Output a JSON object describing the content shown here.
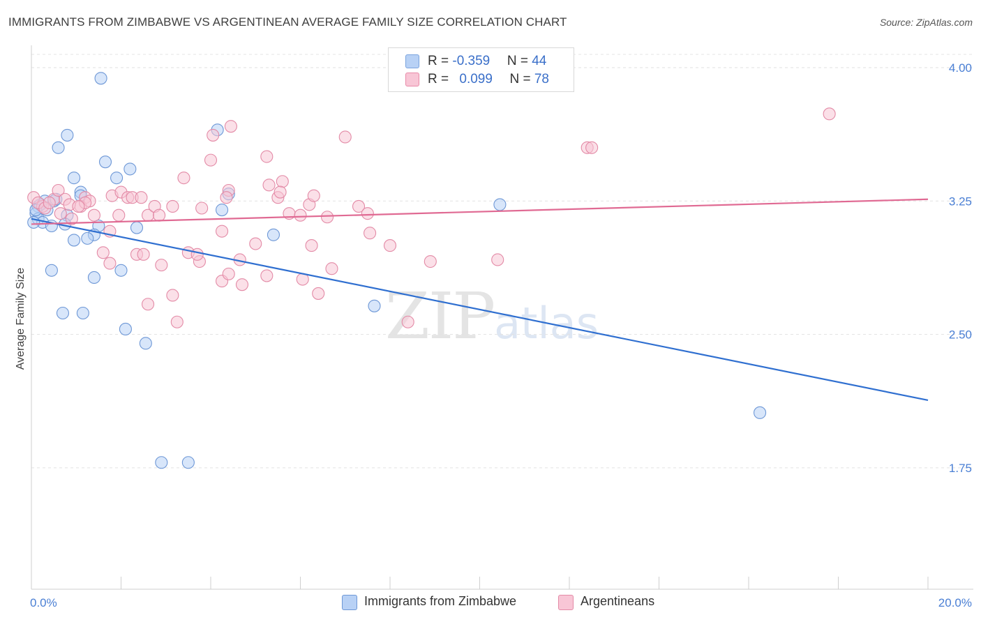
{
  "title": "IMMIGRANTS FROM ZIMBABWE VS ARGENTINEAN AVERAGE FAMILY SIZE CORRELATION CHART",
  "source": "Source: ZipAtlas.com",
  "watermark": {
    "zip": "ZIP",
    "atlas": "atlas"
  },
  "legend_top": {
    "rows": [
      {
        "r_label": "R = ",
        "r_value": "-0.359",
        "n_label": "N = ",
        "n_value": "44",
        "color": "#b8d1f5",
        "border": "#7aa3de"
      },
      {
        "r_label": "R = ",
        "r_value": "0.099",
        "n_label": "N = ",
        "n_value": "78",
        "color": "#f8c6d6",
        "border": "#e98aa8"
      }
    ]
  },
  "legend_bottom": [
    {
      "label": "Immigrants from Zimbabwe",
      "color": "#b8d1f5",
      "border": "#6d97d6"
    },
    {
      "label": "Argentineans",
      "color": "#f8c6d6",
      "border": "#e38aa6"
    }
  ],
  "chart_data": {
    "type": "scatter",
    "title": "IMMIGRANTS FROM ZIMBABWE VS ARGENTINEAN AVERAGE FAMILY SIZE CORRELATION CHART",
    "xlabel": "",
    "ylabel": "Average Family Size",
    "xlim": [
      0,
      20
    ],
    "ylim": [
      1.0,
      4.2
    ],
    "x_tick_labels": [
      "0.0%",
      "20.0%"
    ],
    "y_ticks": [
      1.75,
      2.5,
      3.25,
      4.0
    ],
    "y_tick_labels": [
      "1.75",
      "2.50",
      "3.25",
      "4.00"
    ],
    "grid": true,
    "series": [
      {
        "name": "Immigrants from Zimbabwe",
        "color": "#6d97d6",
        "fill": "#b8d1f5",
        "trend": {
          "x": [
            0,
            20
          ],
          "y": [
            3.15,
            2.13
          ],
          "color": "#2f6fd0"
        },
        "points": [
          [
            1.55,
            3.94
          ],
          [
            0.8,
            3.62
          ],
          [
            0.6,
            3.55
          ],
          [
            1.65,
            3.47
          ],
          [
            2.2,
            3.43
          ],
          [
            1.9,
            3.38
          ],
          [
            0.95,
            3.38
          ],
          [
            4.15,
            3.65
          ],
          [
            4.4,
            3.29
          ],
          [
            1.1,
            3.3
          ],
          [
            0.3,
            3.25
          ],
          [
            0.5,
            3.25
          ],
          [
            0.15,
            3.22
          ],
          [
            0.35,
            3.2
          ],
          [
            4.25,
            3.2
          ],
          [
            0.1,
            3.18
          ],
          [
            0.8,
            3.17
          ],
          [
            0.15,
            3.15
          ],
          [
            0.25,
            3.13
          ],
          [
            0.05,
            3.13
          ],
          [
            0.45,
            3.11
          ],
          [
            0.75,
            3.12
          ],
          [
            1.5,
            3.11
          ],
          [
            2.35,
            3.1
          ],
          [
            1.4,
            3.06
          ],
          [
            1.25,
            3.04
          ],
          [
            0.95,
            3.03
          ],
          [
            5.4,
            3.06
          ],
          [
            0.45,
            2.86
          ],
          [
            2.0,
            2.86
          ],
          [
            1.4,
            2.82
          ],
          [
            0.7,
            2.62
          ],
          [
            1.15,
            2.62
          ],
          [
            7.65,
            2.66
          ],
          [
            2.1,
            2.53
          ],
          [
            2.55,
            2.45
          ],
          [
            10.45,
            3.23
          ],
          [
            16.25,
            2.06
          ],
          [
            2.9,
            1.78
          ],
          [
            3.5,
            1.78
          ],
          [
            0.2,
            3.23
          ],
          [
            0.55,
            3.26
          ],
          [
            1.1,
            3.28
          ],
          [
            0.1,
            3.2
          ]
        ]
      },
      {
        "name": "Argentineans",
        "color": "#e38aa6",
        "fill": "#f8c6d6",
        "trend": {
          "x": [
            0,
            20
          ],
          "y": [
            3.12,
            3.26
          ],
          "color": "#e06a93"
        },
        "points": [
          [
            0.05,
            3.27
          ],
          [
            0.25,
            3.22
          ],
          [
            0.5,
            3.26
          ],
          [
            0.6,
            3.31
          ],
          [
            0.75,
            3.26
          ],
          [
            1.2,
            3.27
          ],
          [
            1.1,
            3.22
          ],
          [
            1.3,
            3.25
          ],
          [
            1.4,
            3.17
          ],
          [
            1.2,
            3.24
          ],
          [
            0.9,
            3.15
          ],
          [
            0.65,
            3.18
          ],
          [
            1.8,
            3.28
          ],
          [
            2.0,
            3.3
          ],
          [
            2.15,
            3.27
          ],
          [
            2.25,
            3.27
          ],
          [
            2.45,
            3.27
          ],
          [
            1.95,
            3.17
          ],
          [
            1.75,
            3.08
          ],
          [
            2.6,
            3.17
          ],
          [
            2.75,
            3.22
          ],
          [
            2.85,
            3.17
          ],
          [
            3.15,
            3.22
          ],
          [
            3.4,
            3.38
          ],
          [
            3.8,
            3.21
          ],
          [
            4.0,
            3.48
          ],
          [
            4.05,
            3.62
          ],
          [
            4.45,
            3.67
          ],
          [
            4.4,
            3.31
          ],
          [
            4.35,
            3.27
          ],
          [
            4.25,
            3.08
          ],
          [
            5.25,
            3.5
          ],
          [
            5.3,
            3.34
          ],
          [
            5.5,
            3.27
          ],
          [
            5.6,
            3.36
          ],
          [
            5.75,
            3.18
          ],
          [
            6.0,
            3.17
          ],
          [
            6.2,
            3.23
          ],
          [
            6.3,
            3.28
          ],
          [
            6.6,
            3.16
          ],
          [
            7.0,
            3.61
          ],
          [
            7.3,
            3.22
          ],
          [
            7.5,
            3.18
          ],
          [
            7.55,
            3.07
          ],
          [
            5.0,
            3.01
          ],
          [
            6.25,
            3.0
          ],
          [
            8.0,
            3.0
          ],
          [
            1.6,
            2.96
          ],
          [
            1.75,
            2.9
          ],
          [
            2.35,
            2.95
          ],
          [
            2.5,
            2.95
          ],
          [
            2.9,
            2.89
          ],
          [
            3.5,
            2.96
          ],
          [
            3.75,
            2.91
          ],
          [
            3.7,
            2.95
          ],
          [
            4.65,
            2.92
          ],
          [
            4.7,
            2.78
          ],
          [
            5.25,
            2.83
          ],
          [
            4.25,
            2.8
          ],
          [
            4.4,
            2.84
          ],
          [
            6.05,
            2.81
          ],
          [
            6.4,
            2.73
          ],
          [
            6.7,
            2.87
          ],
          [
            8.9,
            2.91
          ],
          [
            10.4,
            2.92
          ],
          [
            3.15,
            2.72
          ],
          [
            2.6,
            2.67
          ],
          [
            3.25,
            2.57
          ],
          [
            8.4,
            2.57
          ],
          [
            12.4,
            3.55
          ],
          [
            12.5,
            3.55
          ],
          [
            17.8,
            3.74
          ],
          [
            5.55,
            3.3
          ],
          [
            0.15,
            3.24
          ],
          [
            0.3,
            3.21
          ],
          [
            0.85,
            3.23
          ],
          [
            1.05,
            3.22
          ],
          [
            0.4,
            3.24
          ]
        ]
      }
    ]
  }
}
